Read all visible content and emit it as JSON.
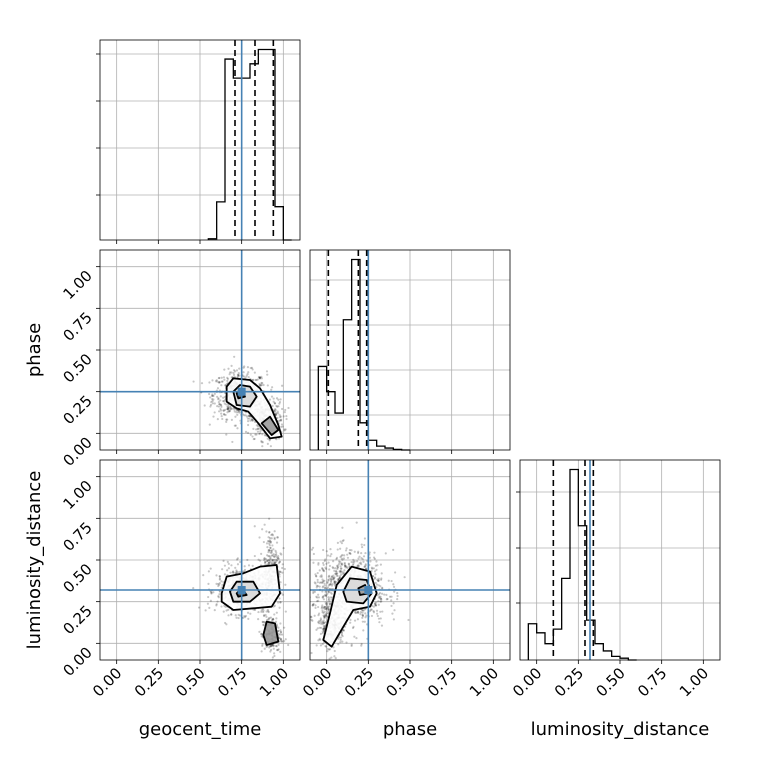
{
  "chart_data": {
    "type": "corner",
    "parameters": [
      "geocent_time",
      "phase",
      "luminosity_distance"
    ],
    "axis_range": [
      -0.1,
      1.1
    ],
    "ticks": [
      0.0,
      0.25,
      0.5,
      0.75,
      1.0
    ],
    "tick_labels": [
      "0.00",
      "0.25",
      "0.50",
      "0.75",
      "1.00"
    ],
    "grid": true,
    "truths": {
      "geocent_time": 0.75,
      "phase": 0.25,
      "luminosity_distance": 0.32
    },
    "colors": {
      "truth": "#4682b4",
      "hist": "#000000",
      "grid": "#b0b0b0",
      "fill": "#8c8c8c"
    },
    "histograms": [
      {
        "param": "geocent_time",
        "bin_edges": [
          0.55,
          0.6,
          0.65,
          0.7,
          0.75,
          0.8,
          0.85,
          0.9,
          0.95,
          1.0,
          1.05
        ],
        "heights": [
          0.005,
          0.16,
          0.76,
          0.68,
          0.68,
          0.74,
          0.8,
          0.8,
          0.14,
          0.0
        ],
        "quantiles": [
          0.71,
          0.83,
          0.94
        ]
      },
      {
        "param": "phase",
        "bin_edges": [
          -0.05,
          0.0,
          0.05,
          0.1,
          0.15,
          0.2,
          0.25,
          0.3,
          0.35,
          0.4,
          0.45,
          0.5
        ],
        "heights": [
          0.43,
          0.3,
          0.19,
          0.67,
          0.98,
          0.14,
          0.05,
          0.02,
          0.01,
          0.003,
          0.0
        ],
        "quantiles": [
          0.01,
          0.19,
          0.24
        ]
      },
      {
        "param": "luminosity_distance",
        "bin_edges": [
          -0.05,
          0.0,
          0.05,
          0.1,
          0.15,
          0.2,
          0.25,
          0.3,
          0.35,
          0.4,
          0.45,
          0.5,
          0.55,
          0.6
        ],
        "heights": [
          0.2,
          0.15,
          0.09,
          0.17,
          0.45,
          1.05,
          0.74,
          0.22,
          0.09,
          0.05,
          0.02,
          0.01,
          0.0
        ],
        "quantiles": [
          0.1,
          0.29,
          0.34
        ]
      }
    ],
    "scatter_2d": [
      {
        "x_param": "geocent_time",
        "y_param": "phase",
        "blobs": [
          {
            "cx": 0.74,
            "cy": 0.23,
            "sx": 0.08,
            "sy": 0.07,
            "n": 700
          },
          {
            "cx": 0.9,
            "cy": 0.08,
            "sx": 0.05,
            "sy": 0.06,
            "n": 350
          }
        ],
        "contours": [
          [
            [
              0.66,
              0.28
            ],
            [
              0.7,
              0.33
            ],
            [
              0.8,
              0.32
            ],
            [
              0.86,
              0.27
            ],
            [
              0.92,
              0.17
            ],
            [
              0.97,
              0.05
            ],
            [
              0.99,
              -0.02
            ],
            [
              0.92,
              -0.03
            ],
            [
              0.85,
              0.06
            ],
            [
              0.79,
              0.13
            ],
            [
              0.72,
              0.15
            ],
            [
              0.66,
              0.19
            ],
            [
              0.66,
              0.28
            ]
          ],
          [
            [
              0.7,
              0.25
            ],
            [
              0.74,
              0.29
            ],
            [
              0.8,
              0.28
            ],
            [
              0.84,
              0.22
            ],
            [
              0.8,
              0.16
            ],
            [
              0.72,
              0.17
            ],
            [
              0.7,
              0.25
            ]
          ],
          [
            [
              0.87,
              0.06
            ],
            [
              0.92,
              0.1
            ],
            [
              0.97,
              0.02
            ],
            [
              0.93,
              -0.01
            ],
            [
              0.87,
              0.06
            ]
          ],
          [
            [
              0.72,
              0.24
            ],
            [
              0.75,
              0.26
            ],
            [
              0.77,
              0.22
            ],
            [
              0.73,
              0.21
            ],
            [
              0.72,
              0.24
            ]
          ]
        ]
      },
      {
        "x_param": "geocent_time",
        "y_param": "luminosity_distance",
        "blobs": [
          {
            "cx": 0.76,
            "cy": 0.32,
            "sx": 0.08,
            "sy": 0.07,
            "n": 700
          },
          {
            "cx": 0.93,
            "cy": 0.45,
            "sx": 0.03,
            "sy": 0.12,
            "n": 250
          },
          {
            "cx": 0.93,
            "cy": 0.05,
            "sx": 0.03,
            "sy": 0.06,
            "n": 200
          }
        ],
        "contours": [
          [
            [
              0.63,
              0.3
            ],
            [
              0.66,
              0.4
            ],
            [
              0.76,
              0.42
            ],
            [
              0.86,
              0.46
            ],
            [
              0.96,
              0.47
            ],
            [
              0.98,
              0.3
            ],
            [
              0.93,
              0.22
            ],
            [
              0.82,
              0.21
            ],
            [
              0.7,
              0.2
            ],
            [
              0.63,
              0.25
            ],
            [
              0.63,
              0.3
            ]
          ],
          [
            [
              0.68,
              0.31
            ],
            [
              0.72,
              0.37
            ],
            [
              0.82,
              0.37
            ],
            [
              0.86,
              0.3
            ],
            [
              0.8,
              0.25
            ],
            [
              0.7,
              0.25
            ],
            [
              0.68,
              0.31
            ]
          ],
          [
            [
              0.88,
              0.05
            ],
            [
              0.9,
              0.13
            ],
            [
              0.95,
              0.12
            ],
            [
              0.97,
              0.01
            ],
            [
              0.9,
              -0.01
            ],
            [
              0.88,
              0.05
            ]
          ],
          [
            [
              0.72,
              0.3
            ],
            [
              0.75,
              0.33
            ],
            [
              0.78,
              0.29
            ],
            [
              0.73,
              0.28
            ],
            [
              0.72,
              0.3
            ]
          ]
        ]
      },
      {
        "x_param": "phase",
        "y_param": "luminosity_distance",
        "blobs": [
          {
            "cx": 0.14,
            "cy": 0.33,
            "sx": 0.11,
            "sy": 0.11,
            "n": 900
          },
          {
            "cx": 0.03,
            "cy": 0.1,
            "sx": 0.05,
            "sy": 0.08,
            "n": 250
          }
        ],
        "contours": [
          [
            [
              -0.02,
              0.02
            ],
            [
              0.02,
              0.18
            ],
            [
              0.06,
              0.35
            ],
            [
              0.15,
              0.46
            ],
            [
              0.26,
              0.43
            ],
            [
              0.3,
              0.3
            ],
            [
              0.26,
              0.22
            ],
            [
              0.16,
              0.2
            ],
            [
              0.1,
              0.1
            ],
            [
              0.03,
              -0.02
            ],
            [
              -0.02,
              0.02
            ]
          ],
          [
            [
              0.1,
              0.31
            ],
            [
              0.14,
              0.39
            ],
            [
              0.24,
              0.38
            ],
            [
              0.27,
              0.3
            ],
            [
              0.22,
              0.24
            ],
            [
              0.12,
              0.25
            ],
            [
              0.1,
              0.31
            ]
          ],
          [
            [
              0.19,
              0.33
            ],
            [
              0.23,
              0.35
            ],
            [
              0.25,
              0.3
            ],
            [
              0.2,
              0.29
            ],
            [
              0.19,
              0.33
            ]
          ]
        ]
      }
    ]
  }
}
